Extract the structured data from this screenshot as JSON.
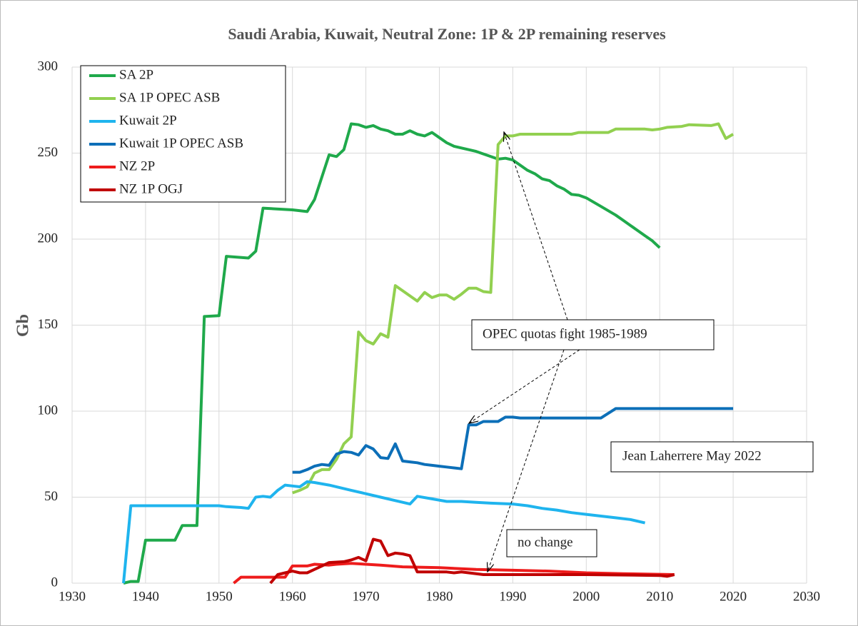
{
  "chart_data": {
    "type": "line",
    "title": "Saudi Arabia, Kuwait, Neutral Zone:  1P & 2P remaining reserves",
    "ylabel": "Gb",
    "xlim": [
      1930,
      2030
    ],
    "xticks": [
      1930,
      1940,
      1950,
      1960,
      1970,
      1980,
      1990,
      2000,
      2010,
      2020,
      2030
    ],
    "ylim": [
      0,
      300
    ],
    "yticks": [
      0,
      50,
      100,
      150,
      200,
      250,
      300
    ],
    "grid": true,
    "legend": "upper left",
    "annotations": [
      "OPEC quotas fight 1985-1989",
      "Jean Laherrere May 2022",
      "no change"
    ],
    "series": [
      {
        "name": "SA 2P",
        "color": "#1fa94b",
        "x": [
          1937,
          1938,
          1939,
          1940,
          1944,
          1945,
          1947,
          1948,
          1950,
          1951,
          1954,
          1955,
          1956,
          1960,
          1962,
          1963,
          1965,
          1966,
          1967,
          1968,
          1969,
          1970,
          1971,
          1972,
          1973,
          1974,
          1975,
          1976,
          1977,
          1978,
          1979,
          1980,
          1981,
          1982,
          1985,
          1987,
          1988,
          1989,
          1990,
          1991,
          1992,
          1993,
          1994,
          1995,
          1996,
          1997,
          1998,
          1999,
          2000,
          2002,
          2004,
          2005,
          2006,
          2008,
          2009,
          2010
        ],
        "values": [
          0,
          1,
          1,
          25,
          25,
          33.5,
          33.5,
          155,
          155.5,
          190,
          189,
          193,
          218,
          217,
          216,
          223,
          249,
          248,
          252,
          267,
          266.5,
          265,
          266,
          264,
          263,
          261,
          261,
          263,
          261,
          260,
          262,
          259,
          256,
          254,
          251,
          248,
          246.5,
          247,
          246,
          243,
          240,
          238,
          235,
          234,
          231,
          229,
          226,
          225.5,
          224,
          219,
          214,
          211,
          208,
          202,
          199,
          195
        ]
      },
      {
        "name": "SA 1P OPEC ASB",
        "color": "#92d050",
        "x": [
          1960,
          1961,
          1962,
          1963,
          1964,
          1965,
          1966,
          1967,
          1968,
          1969,
          1970,
          1971,
          1972,
          1973,
          1974,
          1975,
          1976,
          1977,
          1978,
          1979,
          1980,
          1981,
          1982,
          1983,
          1984,
          1985,
          1986,
          1987,
          1988,
          1989,
          1990,
          1991,
          1998,
          1999,
          2003,
          2004,
          2008,
          2009,
          2010,
          2011,
          2013,
          2014,
          2017,
          2018,
          2019,
          2020
        ],
        "values": [
          52.5,
          54,
          56,
          64,
          66,
          66,
          72,
          81,
          85,
          146,
          141,
          139,
          145,
          143,
          173,
          170,
          167,
          164,
          169,
          166,
          167.5,
          167.5,
          165,
          168,
          171.5,
          171.5,
          169.5,
          169,
          255,
          260,
          260,
          261,
          261,
          262,
          262,
          264,
          264,
          263.5,
          264,
          265,
          265.5,
          266.5,
          266,
          267,
          258.5,
          261
        ]
      },
      {
        "name": "Kuwait 2P",
        "color": "#1fb4ee",
        "x": [
          1937,
          1938,
          1950,
          1951,
          1953,
          1954,
          1955,
          1956,
          1957,
          1958,
          1959,
          1960,
          1961,
          1962,
          1963,
          1965,
          1968,
          1970,
          1972,
          1974,
          1976,
          1977,
          1979,
          1981,
          1983,
          1985,
          1987,
          1990,
          1992,
          1994,
          1996,
          1998,
          2000,
          2002,
          2004,
          2006,
          2008
        ],
        "values": [
          0,
          45,
          45,
          44.5,
          44,
          43.5,
          50,
          50.5,
          50,
          54,
          57,
          56.5,
          56,
          59,
          58.5,
          57,
          54,
          52,
          50,
          48,
          46,
          50.5,
          49,
          47.5,
          47.5,
          47,
          46.5,
          46,
          45,
          43.5,
          42.5,
          41,
          40,
          39,
          38,
          37,
          35
        ]
      },
      {
        "name": "Kuwait 1P OPEC ASB",
        "color": "#0c6fb8",
        "x": [
          1960,
          1961,
          1962,
          1963,
          1964,
          1965,
          1966,
          1967,
          1968,
          1969,
          1970,
          1971,
          1972,
          1973,
          1974,
          1975,
          1976,
          1977,
          1978,
          1979,
          1980,
          1981,
          1982,
          1983,
          1984,
          1985,
          1986,
          1988,
          1989,
          1990,
          1991,
          2002,
          2004,
          2020
        ],
        "values": [
          64.5,
          64.5,
          66,
          68,
          69,
          68.5,
          75,
          76.5,
          76,
          74.5,
          80,
          78,
          73,
          72.5,
          81,
          71,
          70.5,
          70,
          69,
          68.5,
          68,
          67.5,
          67,
          66.5,
          92,
          92,
          94,
          94,
          96.5,
          96.5,
          96,
          96,
          101.5,
          101.5
        ]
      },
      {
        "name": "NZ 2P",
        "color": "#ee1c1c",
        "x": [
          1952,
          1953,
          1956,
          1959,
          1960,
          1962,
          1963,
          1965,
          1966,
          1968,
          1970,
          1972,
          1975,
          1980,
          1985,
          1990,
          1995,
          2000,
          2005,
          2012
        ],
        "values": [
          0,
          3.5,
          3.5,
          3.5,
          10,
          10,
          11,
          10.5,
          11,
          11.5,
          11,
          10.5,
          9.5,
          9,
          8,
          7.5,
          7,
          6,
          5.5,
          5
        ]
      },
      {
        "name": "NZ  1P OGJ",
        "color": "#c00000",
        "x": [
          1957,
          1958,
          1959,
          1960,
          1961,
          1962,
          1963,
          1964,
          1965,
          1967,
          1968,
          1969,
          1970,
          1971,
          1972,
          1973,
          1974,
          1975,
          1976,
          1977,
          1981,
          1982,
          1983,
          1984,
          1986,
          1990,
          2000,
          2010,
          2011,
          2012
        ],
        "values": [
          0,
          5,
          6,
          7,
          6,
          6,
          8,
          10,
          12,
          12.5,
          13.5,
          15,
          13,
          25.5,
          24.5,
          16,
          17.5,
          17,
          16,
          6.5,
          6.5,
          6,
          6.5,
          6,
          5,
          5,
          5,
          4.5,
          4,
          5
        ]
      }
    ]
  }
}
